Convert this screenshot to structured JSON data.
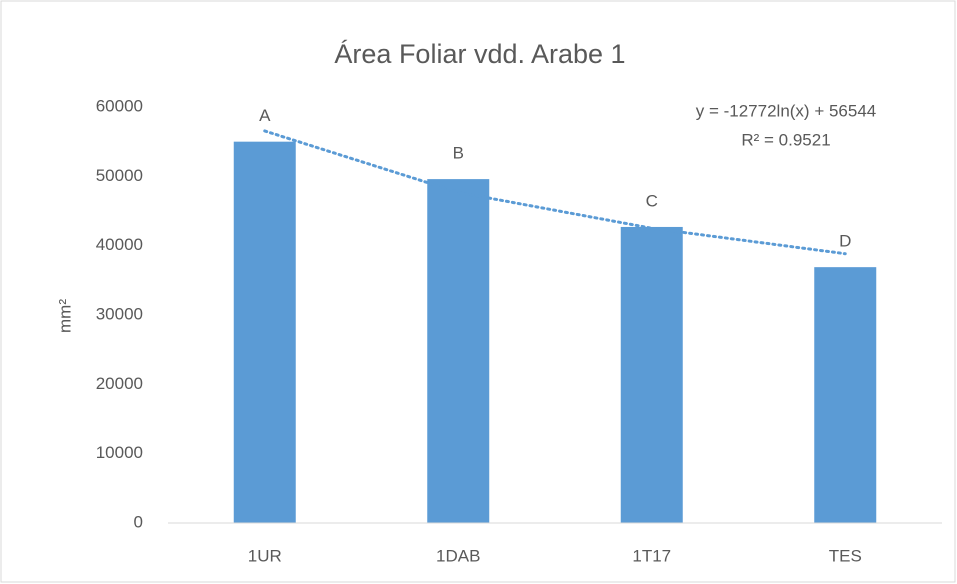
{
  "chart_data": {
    "type": "bar",
    "title": "Área Foliar vdd. Arabe 1",
    "ylabel": "mm²",
    "categories": [
      "1UR",
      "1DAB",
      "1T17",
      "TES"
    ],
    "values": [
      55000,
      49600,
      42700,
      36900
    ],
    "letters": [
      "A",
      "B",
      "C",
      "D"
    ],
    "color": "#5b9bd5",
    "ylim": [
      0,
      60000
    ],
    "yticks": [
      0,
      10000,
      20000,
      30000,
      40000,
      50000,
      60000
    ],
    "grid": false,
    "trendline": {
      "values": [
        56544,
        47691,
        42513,
        38838
      ],
      "color": "#5b9bd5",
      "equation": "y = -12772ln(x) + 56544",
      "r2": "R² = 0.9521"
    }
  }
}
